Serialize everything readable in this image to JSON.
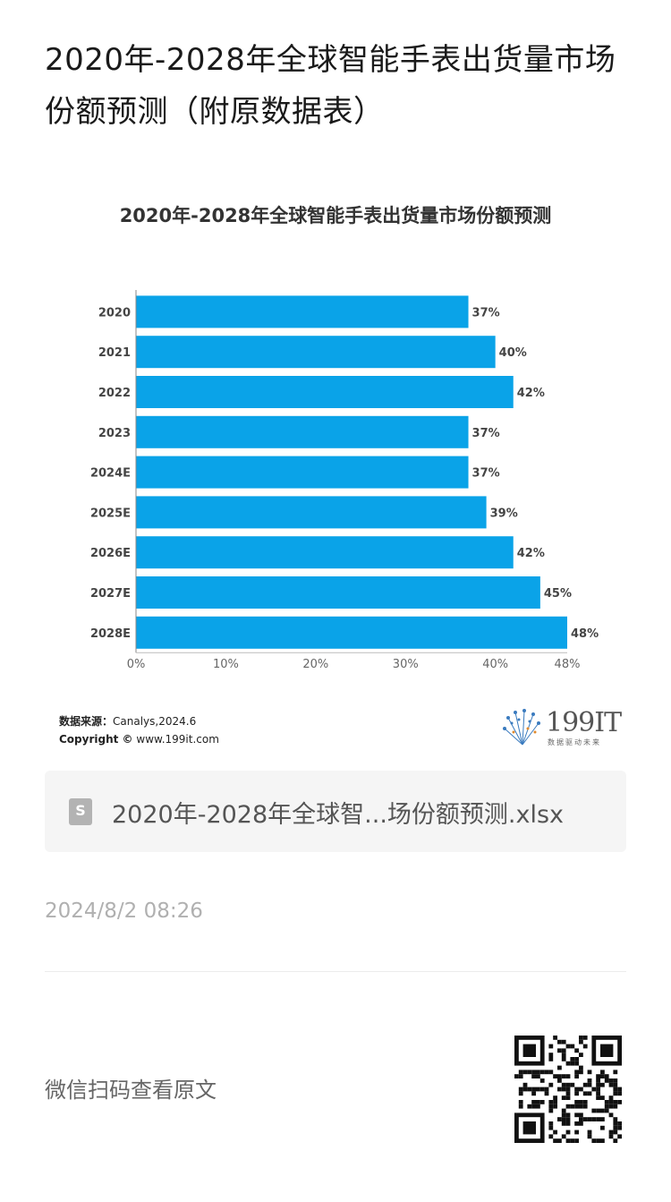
{
  "article": {
    "title": "2020年-2028年全球智能手表出货量市场份额预测（附原数据表）"
  },
  "chart_data": {
    "type": "bar",
    "orientation": "horizontal",
    "title": "2020年-2028年全球智能手表出货量市场份额预测",
    "categories": [
      "2020",
      "2021",
      "2022",
      "2023",
      "2024E",
      "2025E",
      "2026E",
      "2027E",
      "2028E"
    ],
    "values": [
      37,
      40,
      42,
      37,
      37,
      39,
      42,
      45,
      48
    ],
    "value_labels": [
      "37%",
      "40%",
      "42%",
      "37%",
      "37%",
      "39%",
      "42%",
      "45%",
      "48%"
    ],
    "x_ticks": [
      "0%",
      "10%",
      "20%",
      "30%",
      "40%",
      "48%"
    ],
    "x_tick_values": [
      0,
      10,
      20,
      30,
      40,
      48
    ],
    "xlim": [
      0,
      48
    ],
    "bar_color": "#0aa3e8",
    "grid": false,
    "xlabel": "",
    "ylabel": ""
  },
  "source": {
    "label": "数据来源：",
    "value": "Canalys,2024.6",
    "copyright_label": "Copyright ©",
    "copyright_value": "www.199it.com"
  },
  "brand": {
    "name": "199IT",
    "slogan": "数据驱动未来"
  },
  "attachment": {
    "icon": "spreadsheet-file-icon",
    "icon_letter": "S",
    "filename": "2020年-2028年全球智...场份额预测.xlsx"
  },
  "meta": {
    "timestamp": "2024/8/2 08:26",
    "scan_text": "微信扫码查看原文"
  }
}
